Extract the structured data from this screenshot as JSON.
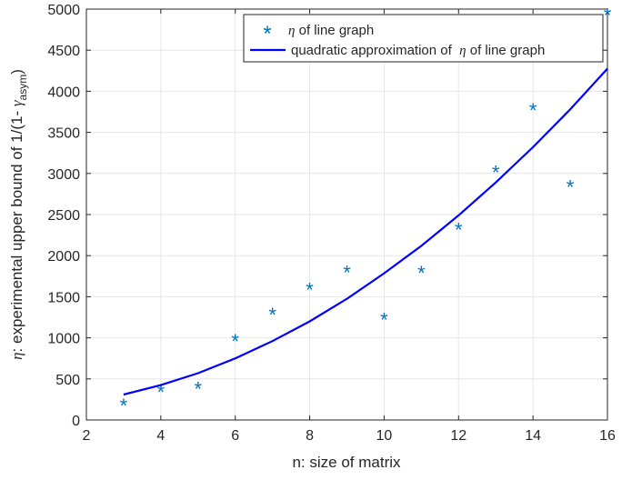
{
  "chart_data": {
    "type": "scatter",
    "xlabel": "n: size of matrix",
    "ylabel_prefix": "η",
    "ylabel_main": ": experimental upper bound of 1/(1- ",
    "ylabel_gamma": "γ",
    "ylabel_sub": "asym",
    "ylabel_suffix": ")",
    "xlim": [
      2,
      16
    ],
    "ylim": [
      0,
      5000
    ],
    "xticks": [
      2,
      4,
      6,
      8,
      10,
      12,
      14,
      16
    ],
    "yticks": [
      0,
      500,
      1000,
      1500,
      2000,
      2500,
      3000,
      3500,
      4000,
      4500,
      5000
    ],
    "grid": true,
    "legend_position": "top-right",
    "series": [
      {
        "name_symbol": "η",
        "name_text": " of line graph",
        "style": "markers",
        "marker": "*",
        "color": "#0072BD",
        "x": [
          3,
          4,
          5,
          6,
          7,
          8,
          9,
          10,
          11,
          12,
          13,
          14,
          15,
          16
        ],
        "y": [
          175,
          345,
          380,
          960,
          1285,
          1590,
          1795,
          1220,
          1790,
          2315,
          3015,
          3770,
          2835,
          4930
        ]
      },
      {
        "name_text": "quadratic approximation of  ",
        "name_symbol": "η",
        "name_suffix": " of line graph",
        "style": "line",
        "color": "#0000FF",
        "x": [
          3,
          4,
          5,
          6,
          7,
          8,
          9,
          10,
          11,
          12,
          13,
          14,
          15,
          16
        ],
        "y": [
          310,
          425,
          570,
          750,
          960,
          1200,
          1475,
          1785,
          2120,
          2490,
          2890,
          3320,
          3780,
          4275
        ]
      }
    ]
  }
}
